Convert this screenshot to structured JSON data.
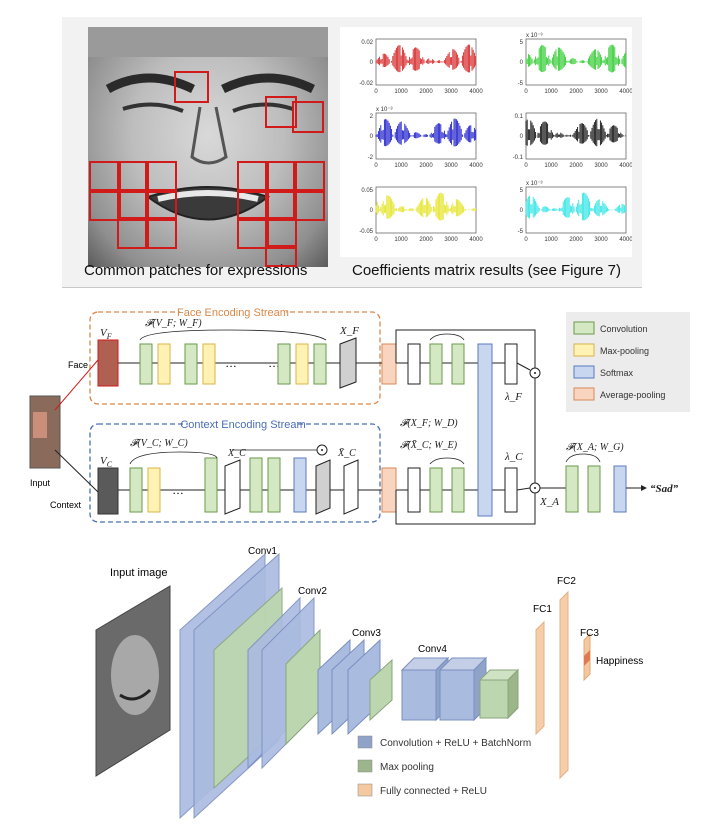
{
  "top_panel": {
    "left_caption": "Common patches for expressions",
    "right_caption": "Coefficients matrix results (see Figure 7)",
    "plots": [
      {
        "color": "#d62728",
        "ytop": "0.02",
        "ymid": "0",
        "ybot": "-0.02",
        "exp": ""
      },
      {
        "color": "#33cc33",
        "ytop": "5",
        "ymid": "0",
        "ybot": "-5",
        "exp": "x 10⁻³"
      },
      {
        "color": "#1f1fcc",
        "ytop": "2",
        "ymid": "0",
        "ybot": "-2",
        "exp": "x 10⁻³"
      },
      {
        "color": "#111111",
        "ytop": "0.1",
        "ymid": "0",
        "ybot": "-0.1",
        "exp": ""
      },
      {
        "color": "#e5e52a",
        "ytop": "0.05",
        "ymid": "0",
        "ybot": "-0.05",
        "exp": ""
      },
      {
        "color": "#33e5e5",
        "ytop": "5",
        "ymid": "0",
        "ybot": "-5",
        "exp": "x 10⁻³"
      }
    ],
    "xticks": [
      "0",
      "1000",
      "2000",
      "3000",
      "4000"
    ]
  },
  "middle_panel": {
    "face_stream_title": "Face Encoding Stream",
    "context_stream_title": "Context Encoding Stream",
    "input_label": "Input",
    "face_label": "Face",
    "context_label": "Context",
    "v_f": "V",
    "v_f_sub": "F",
    "v_c": "V",
    "v_c_sub": "C",
    "f_face": "𝓕(V_F; W_F)",
    "f_context": "𝓕(V_C; W_C)",
    "x_f": "X_F",
    "x_c": "X_C",
    "x_c_bar": "X̄_C",
    "f_xf_wd": "𝓕(X_F; W_D)",
    "f_xc_we": "𝓕(X̄_C; W_E)",
    "lambda_f": "λ_F",
    "lambda_c": "λ_C",
    "f_xa_wg": "𝓕(X_A; W_G)",
    "x_a": "X_A",
    "output": "“Sad”",
    "ellipsis": "…",
    "legend": [
      {
        "label": "Convolution",
        "color": "#d5e8c4",
        "border": "#6a9a4a"
      },
      {
        "label": "Max-pooling",
        "color": "#fff2b3",
        "border": "#d9b54a"
      },
      {
        "label": "Softmax",
        "color": "#c9d6f0",
        "border": "#5a7ac0"
      },
      {
        "label": "Average-pooling",
        "color": "#f9d4bf",
        "border": "#d9885a"
      }
    ]
  },
  "bottom_panel": {
    "input_image_label": "Input image",
    "conv1": "Conv1",
    "conv2": "Conv2",
    "conv3": "Conv3",
    "conv4": "Conv4",
    "fc1": "FC1",
    "fc2": "FC2",
    "fc3": "FC3",
    "output": "Happiness",
    "legend": [
      {
        "label": "Convolution + ReLU + BatchNorm",
        "color": "#8fa3c8"
      },
      {
        "label": "Max pooling",
        "color": "#9cb58a"
      },
      {
        "label": "Fully connected + ReLU",
        "color": "#f4c9a0"
      }
    ]
  }
}
